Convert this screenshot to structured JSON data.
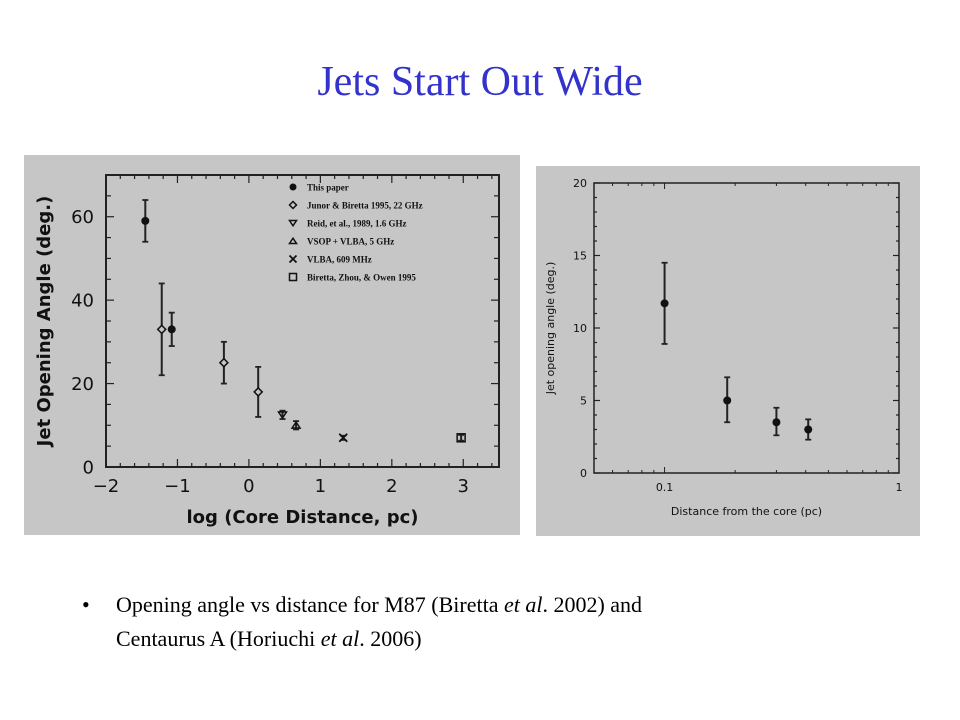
{
  "slide": {
    "title": "Jets Start Out Wide",
    "bullet": {
      "marker": "•",
      "line1_a": "Opening angle vs distance for M87 (Biretta ",
      "line1_em": "et al",
      "line1_b": ". 2002) and",
      "line2_a": "Centaurus A (Horiuchi ",
      "line2_em": "et al",
      "line2_b": ". 2006)"
    }
  },
  "chart_data": [
    {
      "type": "scatter",
      "title": "",
      "xlabel": "log (Core Distance, pc)",
      "ylabel": "Jet Opening Angle (deg.)",
      "xlim": [
        -2,
        3.5
      ],
      "ylim": [
        0,
        70
      ],
      "xticks": [
        -2,
        -1,
        0,
        1,
        2,
        3
      ],
      "xtick_labels": [
        "−2",
        "−1",
        "0",
        "1",
        "2",
        "3"
      ],
      "yticks": [
        0,
        20,
        40,
        60
      ],
      "ytick_labels": [
        "0",
        "20",
        "40",
        "60"
      ],
      "legend_position": "top-right",
      "series": [
        {
          "name": "This paper",
          "marker": "filled-circle",
          "points": [
            {
              "x": -1.45,
              "y": 59,
              "lo": 54,
              "hi": 64
            },
            {
              "x": -1.08,
              "y": 33,
              "lo": 29,
              "hi": 37
            }
          ]
        },
        {
          "name": "Junor & Biretta 1995, 22 GHz",
          "marker": "diamond",
          "points": [
            {
              "x": -1.22,
              "y": 33,
              "lo": 22,
              "hi": 44
            },
            {
              "x": -0.35,
              "y": 25,
              "lo": 20,
              "hi": 30
            },
            {
              "x": 0.13,
              "y": 18,
              "lo": 12,
              "hi": 24
            }
          ]
        },
        {
          "name": "Reid, et al., 1989, 1.6 GHz",
          "marker": "triangle-down",
          "points": [
            {
              "x": 0.47,
              "y": 12.5,
              "lo": 11.5,
              "hi": 13.5
            }
          ]
        },
        {
          "name": "VSOP + VLBA, 5 GHz",
          "marker": "triangle-up",
          "points": [
            {
              "x": 0.66,
              "y": 10,
              "lo": 9,
              "hi": 11
            }
          ]
        },
        {
          "name": "VLBA, 609 MHz",
          "marker": "cross",
          "points": [
            {
              "x": 1.32,
              "y": 7,
              "lo": 6.5,
              "hi": 7.5
            }
          ]
        },
        {
          "name": "Biretta, Zhou, & Owen 1995",
          "marker": "square",
          "points": [
            {
              "x": 2.97,
              "y": 7,
              "lo": 6.3,
              "hi": 7.7
            }
          ]
        }
      ]
    },
    {
      "type": "scatter",
      "title": "",
      "xlabel": "Distance from the core (pc)",
      "ylabel": "Jet opening angle (deg.)",
      "xscale": "log",
      "xlim": [
        0.05,
        1
      ],
      "ylim": [
        0,
        20
      ],
      "xticks": [
        0.1,
        1
      ],
      "xtick_labels": [
        "0.1",
        "1"
      ],
      "yticks": [
        0,
        5,
        10,
        15,
        20
      ],
      "ytick_labels": [
        "0",
        "5",
        "10",
        "15",
        "20"
      ],
      "series": [
        {
          "name": "Centaurus A",
          "marker": "filled-circle",
          "points": [
            {
              "x": 0.1,
              "y": 11.7,
              "lo": 8.9,
              "hi": 14.5
            },
            {
              "x": 0.185,
              "y": 5.0,
              "lo": 3.5,
              "hi": 6.6
            },
            {
              "x": 0.3,
              "y": 3.5,
              "lo": 2.6,
              "hi": 4.5
            },
            {
              "x": 0.41,
              "y": 3.0,
              "lo": 2.3,
              "hi": 3.7
            }
          ]
        }
      ]
    }
  ]
}
